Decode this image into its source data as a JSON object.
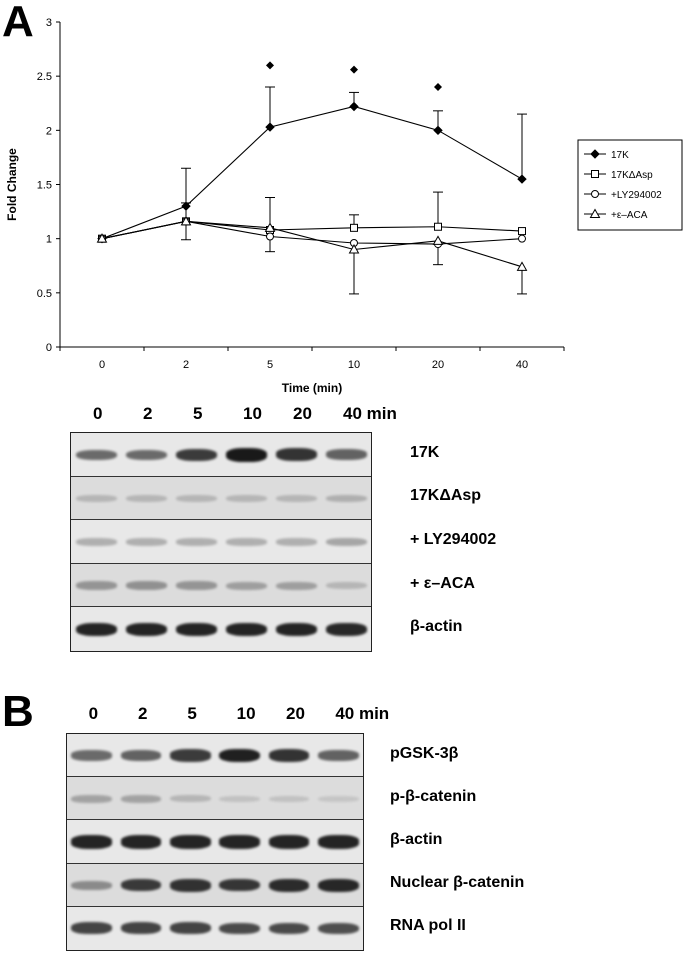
{
  "panel_a": {
    "letter": "A",
    "chart_data": {
      "type": "line",
      "xlabel": "Time (min)",
      "ylabel": "Fold Change",
      "categories": [
        "0",
        "2",
        "5",
        "10",
        "20",
        "40"
      ],
      "ylim": [
        0,
        3
      ],
      "yticks": [
        "0",
        "0.5",
        "1",
        "1.5",
        "2",
        "2.5",
        "3"
      ],
      "legend_position": "right",
      "series": [
        {
          "name": "17K",
          "marker": "diamond-filled",
          "values": [
            1.0,
            1.3,
            2.03,
            2.22,
            2.0,
            1.55
          ],
          "errors": [
            0,
            0.35,
            0.37,
            0.13,
            0.18,
            0.6
          ]
        },
        {
          "name": "17KΔAsp",
          "marker": "square-open",
          "values": [
            1.0,
            1.16,
            1.08,
            1.1,
            1.11,
            1.07
          ],
          "errors": [
            0,
            0.17,
            0.3,
            0.12,
            0.32,
            0
          ]
        },
        {
          "name": "+LY294002",
          "marker": "circle-open",
          "values": [
            1.0,
            1.16,
            1.02,
            0.96,
            0.95,
            1.0
          ],
          "errors": [
            0,
            0,
            0.14,
            0,
            0,
            0
          ]
        },
        {
          "name": "+ε–ACA",
          "marker": "triangle-open",
          "values": [
            1.0,
            1.16,
            1.1,
            0.9,
            0.98,
            0.74
          ],
          "errors": [
            0,
            0.17,
            0,
            0.41,
            0.22,
            0.25
          ]
        }
      ],
      "significance_markers": [
        {
          "x": "5",
          "y": 2.6
        },
        {
          "x": "10",
          "y": 2.56
        },
        {
          "x": "20",
          "y": 2.4
        }
      ]
    },
    "blot": {
      "lanes": [
        "0",
        "2",
        "5",
        "10",
        "20",
        "40 min"
      ],
      "rows": [
        {
          "label": "17K",
          "intensity": [
            0.55,
            0.55,
            0.8,
            0.98,
            0.85,
            0.6
          ]
        },
        {
          "label": "17KΔAsp",
          "intensity": [
            0.12,
            0.12,
            0.12,
            0.12,
            0.12,
            0.15
          ]
        },
        {
          "label": "+ LY294002",
          "intensity": [
            0.2,
            0.2,
            0.2,
            0.2,
            0.2,
            0.25
          ]
        },
        {
          "label": "+ ε–ACA",
          "intensity": [
            0.3,
            0.32,
            0.3,
            0.25,
            0.25,
            0.12
          ]
        },
        {
          "label": "β-actin",
          "intensity": [
            0.92,
            0.92,
            0.92,
            0.92,
            0.92,
            0.9
          ]
        }
      ]
    }
  },
  "panel_b": {
    "letter": "B",
    "blot": {
      "lanes": [
        "0",
        "2",
        "5",
        "10",
        "20",
        "40 min"
      ],
      "rows": [
        {
          "label": "pGSK-3β",
          "intensity": [
            0.55,
            0.6,
            0.8,
            0.95,
            0.85,
            0.6
          ]
        },
        {
          "label": "p-β-catenin",
          "intensity": [
            0.22,
            0.22,
            0.12,
            0.05,
            0.05,
            0.03
          ]
        },
        {
          "label": "β-actin",
          "intensity": [
            0.92,
            0.92,
            0.92,
            0.92,
            0.92,
            0.92
          ]
        },
        {
          "label": "Nuclear β-catenin",
          "intensity": [
            0.35,
            0.8,
            0.85,
            0.82,
            0.88,
            0.9
          ]
        },
        {
          "label": "RNA pol II",
          "intensity": [
            0.75,
            0.75,
            0.75,
            0.72,
            0.72,
            0.7
          ]
        }
      ]
    }
  },
  "colors": {
    "line": "#000000",
    "band": "#111111",
    "blot_background": "#e6e6e6"
  }
}
